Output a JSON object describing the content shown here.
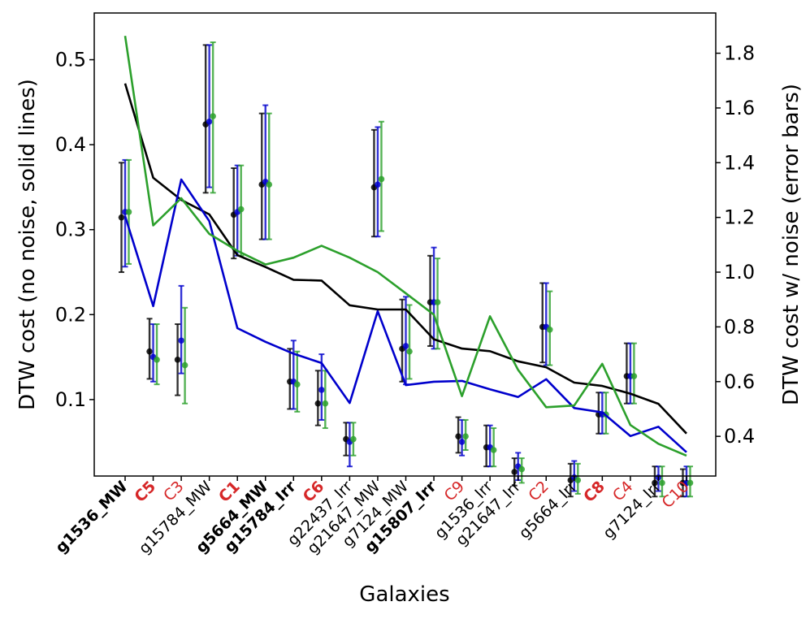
{
  "chart_data": {
    "type": "line",
    "xlabel": "Galaxies",
    "ylabel_left": "DTW cost (no noise, solid lines)",
    "ylabel_right": "DTW cost w/ noise (error bars)",
    "ylim_left": [
      0.01,
      0.555
    ],
    "ylim_right": [
      0.255,
      1.947
    ],
    "yticks_left": [
      0.1,
      0.2,
      0.3,
      0.4,
      0.5
    ],
    "yticks_right": [
      0.4,
      0.6,
      0.8,
      1.0,
      1.2,
      1.4,
      1.6,
      1.8
    ],
    "categories": [
      {
        "label": "g1536_MW",
        "color": "#000000",
        "bold": true
      },
      {
        "label": "C5",
        "color": "#d62728",
        "bold": true
      },
      {
        "label": "C3",
        "color": "#d62728",
        "bold": false
      },
      {
        "label": "g15784_MW",
        "color": "#000000",
        "bold": false
      },
      {
        "label": "C1",
        "color": "#d62728",
        "bold": true
      },
      {
        "label": "g5664_MW",
        "color": "#000000",
        "bold": true
      },
      {
        "label": "g15784_Irr",
        "color": "#000000",
        "bold": true
      },
      {
        "label": "C6",
        "color": "#d62728",
        "bold": true
      },
      {
        "label": "g22437_Irr",
        "color": "#000000",
        "bold": false
      },
      {
        "label": "g21647_MW",
        "color": "#000000",
        "bold": false
      },
      {
        "label": "g7124_MW",
        "color": "#000000",
        "bold": false
      },
      {
        "label": "g15807_Irr",
        "color": "#000000",
        "bold": true
      },
      {
        "label": "C9",
        "color": "#d62728",
        "bold": false
      },
      {
        "label": "g1536_Irr",
        "color": "#000000",
        "bold": false
      },
      {
        "label": "g21647_Irr",
        "color": "#000000",
        "bold": false
      },
      {
        "label": "C2",
        "color": "#d62728",
        "bold": false
      },
      {
        "label": "g5664_Irr",
        "color": "#000000",
        "bold": false
      },
      {
        "label": "C8",
        "color": "#d62728",
        "bold": true
      },
      {
        "label": "C4",
        "color": "#d62728",
        "bold": false
      },
      {
        "label": "g7124_Irr",
        "color": "#000000",
        "bold": false
      },
      {
        "label": "C10",
        "color": "#d62728",
        "bold": false
      }
    ],
    "lines": [
      {
        "name": "black",
        "color": "#000000",
        "values": [
          0.472,
          0.361,
          0.335,
          0.318,
          0.27,
          0.256,
          0.241,
          0.24,
          0.211,
          0.206,
          0.206,
          0.171,
          0.16,
          0.157,
          0.145,
          0.138,
          0.12,
          0.116,
          0.107,
          0.095,
          0.06
        ]
      },
      {
        "name": "blue",
        "color": "#0000cc",
        "values": [
          0.316,
          0.21,
          0.359,
          0.31,
          0.184,
          0.168,
          0.154,
          0.143,
          0.096,
          0.204,
          0.117,
          0.121,
          0.122,
          0.112,
          0.103,
          0.124,
          0.09,
          0.085,
          0.057,
          0.068,
          0.038
        ]
      },
      {
        "name": "green",
        "color": "#2ca02c",
        "values": [
          0.528,
          0.305,
          0.337,
          0.295,
          0.275,
          0.259,
          0.267,
          0.281,
          0.267,
          0.25,
          0.225,
          0.2,
          0.104,
          0.198,
          0.135,
          0.091,
          0.093,
          0.142,
          0.07,
          0.048,
          0.034
        ]
      }
    ],
    "errorbars": [
      {
        "name": "black",
        "color": "#000000",
        "points": [
          {
            "y": 1.2,
            "lo": 1.0,
            "hi": 1.4
          },
          {
            "y": 0.71,
            "lo": 0.61,
            "hi": 0.83
          },
          {
            "y": 0.68,
            "lo": 0.55,
            "hi": 0.81
          },
          {
            "y": 1.54,
            "lo": 1.29,
            "hi": 1.83
          },
          {
            "y": 1.21,
            "lo": 1.05,
            "hi": 1.38
          },
          {
            "y": 1.32,
            "lo": 1.12,
            "hi": 1.58
          },
          {
            "y": 0.6,
            "lo": 0.5,
            "hi": 0.72
          },
          {
            "y": 0.52,
            "lo": 0.44,
            "hi": 0.64
          },
          {
            "y": 0.39,
            "lo": 0.33,
            "hi": 0.45
          },
          {
            "y": 1.31,
            "lo": 1.13,
            "hi": 1.52
          },
          {
            "y": 0.72,
            "lo": 0.6,
            "hi": 0.9
          },
          {
            "y": 0.89,
            "lo": 0.73,
            "hi": 1.06
          },
          {
            "y": 0.4,
            "lo": 0.34,
            "hi": 0.47
          },
          {
            "y": 0.36,
            "lo": 0.29,
            "hi": 0.44
          },
          {
            "y": 0.27,
            "lo": 0.22,
            "hi": 0.32
          },
          {
            "y": 0.8,
            "lo": 0.67,
            "hi": 0.96
          },
          {
            "y": 0.24,
            "lo": 0.18,
            "hi": 0.3
          },
          {
            "y": 0.48,
            "lo": 0.41,
            "hi": 0.56
          },
          {
            "y": 0.62,
            "lo": 0.52,
            "hi": 0.74
          },
          {
            "y": 0.23,
            "lo": 0.18,
            "hi": 0.29
          },
          {
            "y": 0.23,
            "lo": 0.18,
            "hi": 0.28
          }
        ]
      },
      {
        "name": "blue",
        "color": "#0000cc",
        "points": [
          {
            "y": 1.22,
            "lo": 1.02,
            "hi": 1.41
          },
          {
            "y": 0.69,
            "lo": 0.6,
            "hi": 0.81
          },
          {
            "y": 0.75,
            "lo": 0.63,
            "hi": 0.95
          },
          {
            "y": 1.55,
            "lo": 1.31,
            "hi": 1.83
          },
          {
            "y": 1.22,
            "lo": 1.06,
            "hi": 1.39
          },
          {
            "y": 1.33,
            "lo": 1.12,
            "hi": 1.61
          },
          {
            "y": 0.6,
            "lo": 0.5,
            "hi": 0.75
          },
          {
            "y": 0.57,
            "lo": 0.46,
            "hi": 0.7
          },
          {
            "y": 0.38,
            "lo": 0.29,
            "hi": 0.45
          },
          {
            "y": 1.32,
            "lo": 1.13,
            "hi": 1.53
          },
          {
            "y": 0.73,
            "lo": 0.59,
            "hi": 0.91
          },
          {
            "y": 0.89,
            "lo": 0.72,
            "hi": 1.09
          },
          {
            "y": 0.38,
            "lo": 0.33,
            "hi": 0.46
          },
          {
            "y": 0.36,
            "lo": 0.29,
            "hi": 0.44
          },
          {
            "y": 0.29,
            "lo": 0.24,
            "hi": 0.34
          },
          {
            "y": 0.8,
            "lo": 0.66,
            "hi": 0.96
          },
          {
            "y": 0.25,
            "lo": 0.2,
            "hi": 0.31
          },
          {
            "y": 0.48,
            "lo": 0.41,
            "hi": 0.56
          },
          {
            "y": 0.62,
            "lo": 0.52,
            "hi": 0.74
          },
          {
            "y": 0.25,
            "lo": 0.2,
            "hi": 0.29
          },
          {
            "y": 0.23,
            "lo": 0.18,
            "hi": 0.29
          }
        ]
      },
      {
        "name": "green",
        "color": "#2ca02c",
        "points": [
          {
            "y": 1.22,
            "lo": 1.03,
            "hi": 1.41
          },
          {
            "y": 0.68,
            "lo": 0.59,
            "hi": 0.81
          },
          {
            "y": 0.66,
            "lo": 0.52,
            "hi": 0.87
          },
          {
            "y": 1.57,
            "lo": 1.29,
            "hi": 1.84
          },
          {
            "y": 1.23,
            "lo": 1.06,
            "hi": 1.39
          },
          {
            "y": 1.32,
            "lo": 1.12,
            "hi": 1.58
          },
          {
            "y": 0.59,
            "lo": 0.49,
            "hi": 0.71
          },
          {
            "y": 0.52,
            "lo": 0.43,
            "hi": 0.64
          },
          {
            "y": 0.39,
            "lo": 0.33,
            "hi": 0.45
          },
          {
            "y": 1.34,
            "lo": 1.15,
            "hi": 1.55
          },
          {
            "y": 0.71,
            "lo": 0.61,
            "hi": 0.88
          },
          {
            "y": 0.89,
            "lo": 0.72,
            "hi": 1.05
          },
          {
            "y": 0.4,
            "lo": 0.35,
            "hi": 0.46
          },
          {
            "y": 0.35,
            "lo": 0.29,
            "hi": 0.43
          },
          {
            "y": 0.28,
            "lo": 0.23,
            "hi": 0.32
          },
          {
            "y": 0.79,
            "lo": 0.66,
            "hi": 0.93
          },
          {
            "y": 0.24,
            "lo": 0.19,
            "hi": 0.3
          },
          {
            "y": 0.48,
            "lo": 0.41,
            "hi": 0.56
          },
          {
            "y": 0.62,
            "lo": 0.52,
            "hi": 0.74
          },
          {
            "y": 0.23,
            "lo": 0.18,
            "hi": 0.29
          },
          {
            "y": 0.23,
            "lo": 0.18,
            "hi": 0.29
          }
        ]
      }
    ]
  }
}
